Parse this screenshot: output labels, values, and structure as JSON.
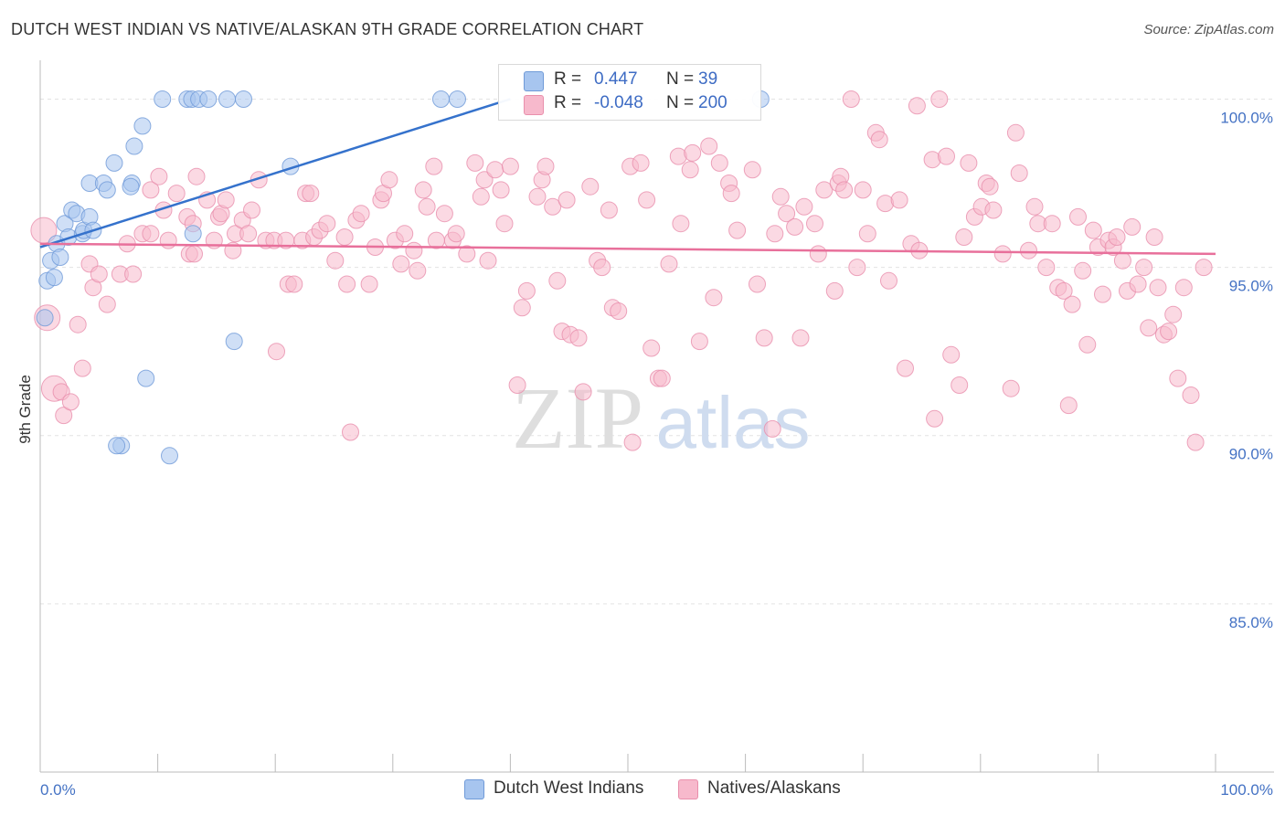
{
  "chart_data": {
    "type": "scatter",
    "title": "DUTCH WEST INDIAN VS NATIVE/ALASKAN 9TH GRADE CORRELATION CHART",
    "source": "Source: ZipAtlas.com",
    "ylabel": "9th Grade",
    "xlabel": "",
    "xlim": [
      0,
      100
    ],
    "ylim": [
      80.0,
      100.8
    ],
    "x_tick_labels": [
      "0.0%",
      "100.0%"
    ],
    "y_ticks": [
      85.0,
      90.0,
      95.0,
      100.0
    ],
    "y_tick_labels": [
      "85.0%",
      "90.0%",
      "95.0%",
      "100.0%"
    ],
    "grid": true,
    "watermark": [
      "ZIP",
      "atlas"
    ],
    "legend": {
      "r_label": "R =",
      "n_label": "N =",
      "rows": [
        {
          "r": "0.447",
          "n": "39"
        },
        {
          "r": "-0.048",
          "n": "200"
        }
      ]
    },
    "series": [
      {
        "name": "Dutch West Indians",
        "color": "#a7c5ef",
        "stroke": "#6f9ad8",
        "trend_color": "#3572cc",
        "trend": {
          "x": [
            0,
            40
          ],
          "y": [
            95.6,
            100.0
          ]
        },
        "points": [
          [
            0.4,
            93.5
          ],
          [
            0.6,
            94.6
          ],
          [
            0.9,
            95.2
          ],
          [
            1.2,
            94.7
          ],
          [
            1.4,
            95.7
          ],
          [
            1.7,
            95.3
          ],
          [
            2.1,
            96.3
          ],
          [
            2.4,
            95.9
          ],
          [
            2.7,
            96.7
          ],
          [
            3.1,
            96.6
          ],
          [
            3.6,
            96.0
          ],
          [
            3.7,
            96.1
          ],
          [
            4.2,
            96.5
          ],
          [
            4.5,
            96.1
          ],
          [
            4.2,
            97.5
          ],
          [
            5.4,
            97.5
          ],
          [
            5.7,
            97.3
          ],
          [
            6.3,
            98.1
          ],
          [
            7.8,
            97.5
          ],
          [
            7.7,
            97.4
          ],
          [
            8.0,
            98.6
          ],
          [
            8.7,
            99.2
          ],
          [
            10.4,
            100.0
          ],
          [
            12.5,
            100.0
          ],
          [
            12.9,
            100.0
          ],
          [
            13.5,
            100.0
          ],
          [
            14.3,
            100.0
          ],
          [
            15.9,
            100.0
          ],
          [
            17.3,
            100.0
          ],
          [
            11.0,
            89.4
          ],
          [
            9.0,
            91.7
          ],
          [
            6.9,
            89.7
          ],
          [
            6.5,
            89.7
          ],
          [
            13.0,
            96.0
          ],
          [
            16.5,
            92.8
          ],
          [
            21.3,
            98.0
          ],
          [
            34.1,
            100.0
          ],
          [
            35.5,
            100.0
          ],
          [
            61.3,
            100.0
          ]
        ]
      },
      {
        "name": "Natives/Alaskans",
        "color": "#f7b9cc",
        "stroke": "#e98fac",
        "trend_color": "#e8709b",
        "trend": {
          "x": [
            0,
            100
          ],
          "y": [
            95.7,
            95.4
          ]
        },
        "points": [
          [
            0.3,
            96.1
          ],
          [
            0.6,
            93.5
          ],
          [
            1.2,
            91.4
          ],
          [
            1.8,
            91.3
          ],
          [
            2.0,
            90.6
          ],
          [
            2.6,
            91.0
          ],
          [
            3.2,
            93.3
          ],
          [
            3.6,
            92.0
          ],
          [
            4.2,
            95.1
          ],
          [
            4.5,
            94.4
          ],
          [
            5.0,
            94.8
          ],
          [
            5.7,
            93.9
          ],
          [
            6.8,
            94.8
          ],
          [
            7.4,
            95.7
          ],
          [
            7.9,
            94.8
          ],
          [
            8.7,
            96.0
          ],
          [
            9.4,
            96.0
          ],
          [
            9.4,
            97.3
          ],
          [
            10.1,
            97.7
          ],
          [
            10.5,
            96.7
          ],
          [
            10.9,
            95.8
          ],
          [
            11.6,
            97.2
          ],
          [
            12.5,
            96.5
          ],
          [
            12.7,
            95.4
          ],
          [
            13.0,
            96.3
          ],
          [
            13.1,
            95.4
          ],
          [
            13.3,
            97.7
          ],
          [
            14.2,
            97.0
          ],
          [
            14.8,
            95.8
          ],
          [
            15.2,
            96.5
          ],
          [
            15.4,
            96.6
          ],
          [
            15.8,
            97.0
          ],
          [
            16.4,
            95.5
          ],
          [
            16.6,
            96.0
          ],
          [
            17.2,
            96.4
          ],
          [
            17.7,
            96.0
          ],
          [
            18.0,
            96.7
          ],
          [
            18.6,
            97.6
          ],
          [
            19.2,
            95.8
          ],
          [
            19.9,
            95.8
          ],
          [
            20.1,
            92.5
          ],
          [
            20.9,
            95.8
          ],
          [
            21.1,
            94.5
          ],
          [
            21.6,
            94.5
          ],
          [
            22.3,
            95.8
          ],
          [
            22.6,
            97.2
          ],
          [
            23.0,
            97.2
          ],
          [
            23.3,
            95.9
          ],
          [
            23.8,
            96.1
          ],
          [
            24.4,
            96.3
          ],
          [
            25.1,
            95.2
          ],
          [
            25.9,
            95.9
          ],
          [
            26.1,
            94.5
          ],
          [
            26.4,
            90.1
          ],
          [
            26.9,
            96.4
          ],
          [
            27.3,
            96.6
          ],
          [
            28.0,
            94.5
          ],
          [
            28.5,
            95.6
          ],
          [
            29.0,
            97.0
          ],
          [
            29.2,
            97.2
          ],
          [
            29.7,
            97.6
          ],
          [
            30.2,
            95.8
          ],
          [
            30.7,
            95.1
          ],
          [
            31.0,
            96.0
          ],
          [
            31.8,
            95.5
          ],
          [
            32.1,
            94.9
          ],
          [
            32.6,
            97.3
          ],
          [
            32.9,
            96.8
          ],
          [
            33.5,
            98.0
          ],
          [
            33.7,
            95.8
          ],
          [
            34.4,
            96.6
          ],
          [
            35.1,
            95.8
          ],
          [
            35.4,
            96.0
          ],
          [
            36.3,
            95.4
          ],
          [
            37.0,
            98.1
          ],
          [
            37.5,
            97.1
          ],
          [
            37.8,
            97.6
          ],
          [
            38.1,
            95.2
          ],
          [
            38.7,
            97.9
          ],
          [
            39.2,
            97.3
          ],
          [
            39.5,
            96.3
          ],
          [
            40.0,
            98.0
          ],
          [
            40.6,
            91.5
          ],
          [
            41.0,
            93.8
          ],
          [
            41.4,
            94.3
          ],
          [
            42.3,
            97.1
          ],
          [
            42.7,
            97.6
          ],
          [
            43.0,
            98.0
          ],
          [
            43.6,
            96.8
          ],
          [
            44.0,
            94.6
          ],
          [
            44.4,
            93.1
          ],
          [
            44.8,
            97.0
          ],
          [
            45.1,
            93.0
          ],
          [
            45.8,
            92.9
          ],
          [
            46.2,
            91.3
          ],
          [
            46.8,
            97.4
          ],
          [
            47.4,
            95.2
          ],
          [
            47.8,
            95.0
          ],
          [
            48.4,
            96.7
          ],
          [
            48.7,
            93.8
          ],
          [
            49.2,
            93.7
          ],
          [
            50.2,
            98.0
          ],
          [
            50.4,
            89.8
          ],
          [
            51.1,
            98.1
          ],
          [
            51.6,
            97.0
          ],
          [
            52.0,
            92.6
          ],
          [
            52.6,
            91.7
          ],
          [
            52.9,
            91.7
          ],
          [
            53.5,
            95.1
          ],
          [
            54.3,
            98.3
          ],
          [
            54.5,
            96.3
          ],
          [
            55.3,
            97.9
          ],
          [
            55.5,
            98.4
          ],
          [
            56.1,
            92.8
          ],
          [
            56.9,
            98.6
          ],
          [
            57.3,
            94.1
          ],
          [
            57.8,
            98.1
          ],
          [
            58.6,
            97.5
          ],
          [
            58.8,
            97.2
          ],
          [
            59.3,
            96.1
          ],
          [
            60.6,
            97.9
          ],
          [
            61.0,
            94.5
          ],
          [
            61.6,
            92.9
          ],
          [
            62.3,
            90.2
          ],
          [
            62.5,
            96.0
          ],
          [
            63.0,
            97.1
          ],
          [
            63.5,
            96.6
          ],
          [
            64.2,
            96.2
          ],
          [
            64.7,
            92.9
          ],
          [
            65.0,
            96.8
          ],
          [
            65.9,
            96.3
          ],
          [
            66.2,
            95.4
          ],
          [
            66.7,
            97.3
          ],
          [
            67.6,
            94.3
          ],
          [
            67.9,
            97.5
          ],
          [
            68.1,
            97.7
          ],
          [
            68.4,
            97.3
          ],
          [
            69.0,
            100.0
          ],
          [
            69.5,
            95.0
          ],
          [
            70.0,
            97.3
          ],
          [
            70.4,
            96.0
          ],
          [
            71.1,
            99.0
          ],
          [
            71.4,
            98.8
          ],
          [
            71.9,
            96.9
          ],
          [
            72.2,
            94.6
          ],
          [
            73.1,
            97.0
          ],
          [
            73.6,
            92.0
          ],
          [
            74.1,
            95.7
          ],
          [
            74.6,
            99.8
          ],
          [
            74.8,
            95.5
          ],
          [
            75.9,
            98.2
          ],
          [
            76.1,
            90.5
          ],
          [
            76.5,
            100.0
          ],
          [
            77.1,
            98.3
          ],
          [
            77.5,
            92.4
          ],
          [
            78.2,
            91.5
          ],
          [
            78.6,
            95.9
          ],
          [
            79.0,
            98.1
          ],
          [
            79.5,
            96.5
          ],
          [
            80.1,
            96.8
          ],
          [
            80.5,
            97.5
          ],
          [
            80.8,
            97.4
          ],
          [
            81.1,
            96.7
          ],
          [
            81.9,
            95.4
          ],
          [
            82.6,
            91.4
          ],
          [
            83.0,
            99.0
          ],
          [
            83.3,
            97.8
          ],
          [
            84.1,
            95.5
          ],
          [
            84.6,
            96.8
          ],
          [
            84.9,
            96.3
          ],
          [
            85.6,
            95.0
          ],
          [
            86.1,
            96.3
          ],
          [
            86.6,
            94.4
          ],
          [
            87.1,
            94.3
          ],
          [
            87.5,
            90.9
          ],
          [
            87.8,
            93.9
          ],
          [
            88.3,
            96.5
          ],
          [
            88.7,
            94.9
          ],
          [
            89.1,
            92.7
          ],
          [
            89.6,
            96.1
          ],
          [
            90.0,
            95.6
          ],
          [
            90.4,
            94.2
          ],
          [
            90.9,
            95.8
          ],
          [
            91.3,
            95.6
          ],
          [
            91.6,
            95.9
          ],
          [
            92.1,
            95.2
          ],
          [
            92.5,
            94.3
          ],
          [
            92.9,
            96.2
          ],
          [
            93.4,
            94.5
          ],
          [
            93.9,
            95.0
          ],
          [
            94.3,
            93.2
          ],
          [
            94.8,
            95.9
          ],
          [
            95.1,
            94.4
          ],
          [
            95.6,
            93.0
          ],
          [
            96.0,
            93.1
          ],
          [
            96.4,
            93.6
          ],
          [
            96.8,
            91.7
          ],
          [
            97.3,
            94.4
          ],
          [
            97.9,
            91.2
          ],
          [
            98.3,
            89.8
          ],
          [
            99.0,
            95.0
          ]
        ]
      }
    ]
  },
  "legend_bottom": [
    "Dutch West Indians",
    "Natives/Alaskans"
  ]
}
